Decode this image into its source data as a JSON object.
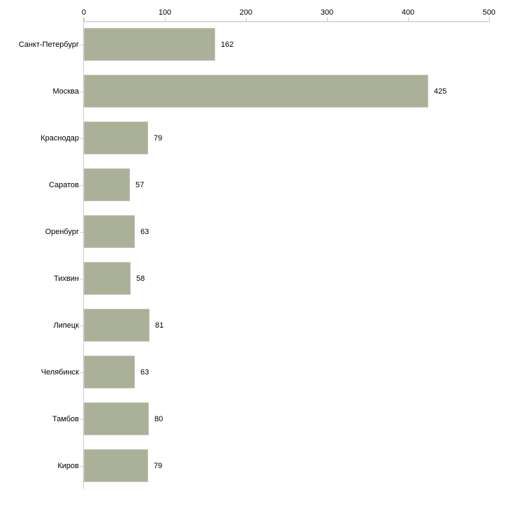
{
  "chart_data": {
    "type": "bar",
    "orientation": "horizontal",
    "title": "",
    "categories": [
      "Санкт-Петербург",
      "Москва",
      "Краснодар",
      "Саратов",
      "Оренбург",
      "Тихвин",
      "Липецк",
      "Челябинск",
      "Тамбов",
      "Киров"
    ],
    "values": [
      162,
      425,
      79,
      57,
      63,
      58,
      81,
      63,
      80,
      79
    ],
    "value_labels": [
      "162",
      "425",
      "79",
      "57",
      "63",
      "58",
      "81",
      "63",
      "80",
      "79"
    ],
    "x_ticks": [
      "0",
      "100",
      "200",
      "300",
      "400",
      "500"
    ],
    "xlim": [
      0,
      500
    ],
    "x_axis_position": "top",
    "grid": false,
    "legend": false,
    "colors": {
      "bar_fill": "#abb199",
      "axis_line": "#c9c9c9",
      "tick_mark": "#cbcb9e",
      "text": "#000000",
      "background": "#ffffff"
    }
  }
}
